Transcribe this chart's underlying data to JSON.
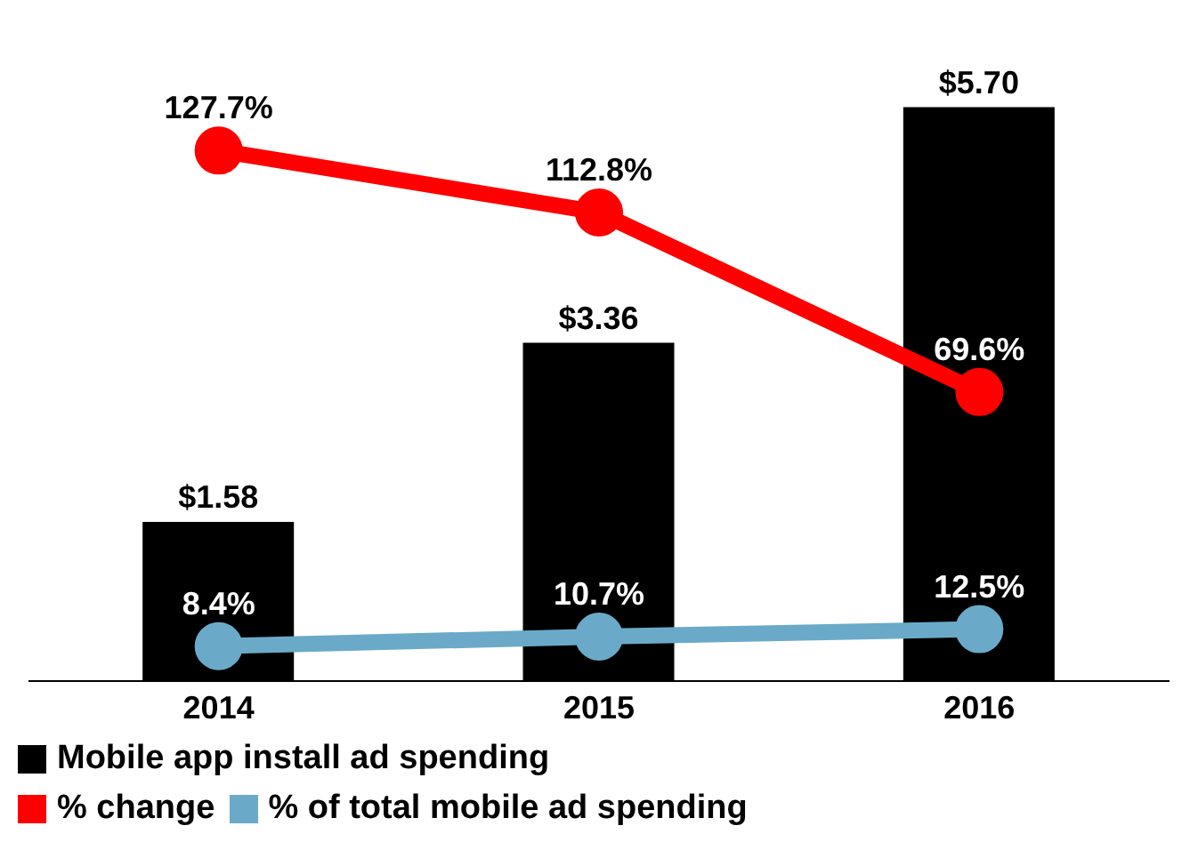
{
  "chart_data": {
    "type": "bar",
    "categories": [
      "2014",
      "2015",
      "2016"
    ],
    "series": [
      {
        "name": "Mobile app install ad spending",
        "color": "#000000",
        "values": [
          1.58,
          3.36,
          5.7
        ],
        "value_labels": [
          "$1.58",
          "$3.36",
          "$5.70"
        ]
      },
      {
        "name": "% change",
        "type": "line",
        "axis": "y2",
        "color": "#ff0000",
        "values": [
          127.7,
          112.8,
          69.6
        ],
        "value_labels": [
          "127.7%",
          "112.8%",
          "69.6%"
        ]
      },
      {
        "name": "% of total mobile ad spending",
        "type": "line",
        "axis": "y2",
        "color": "#6aaac8",
        "values": [
          8.4,
          10.7,
          12.5
        ],
        "value_labels": [
          "8.4%",
          "10.7%",
          "12.5%"
        ]
      }
    ],
    "legend": "bottom",
    "marker": "circle"
  }
}
